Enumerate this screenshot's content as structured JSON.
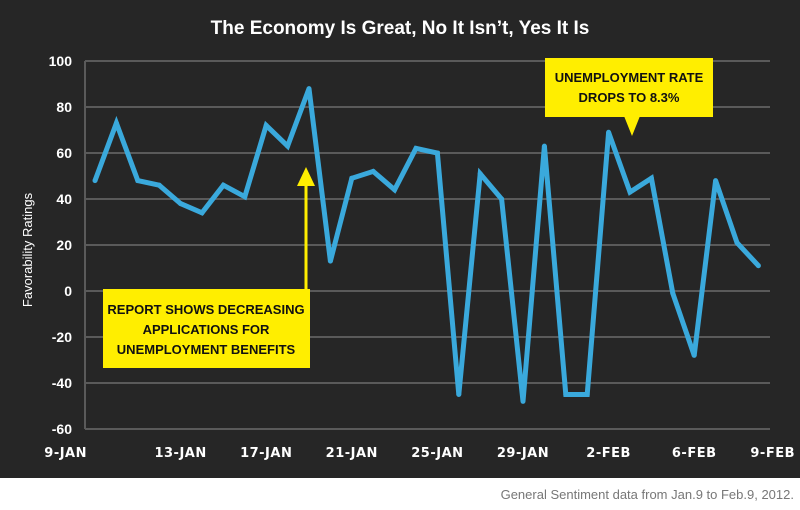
{
  "chart_data": {
    "type": "line",
    "title": "The Economy Is Great, No It Isn’t, Yes It Is",
    "ylabel": "Favorability Ratings",
    "xlabel": "",
    "ylim": [
      -60,
      100
    ],
    "yticks": [
      100,
      80,
      60,
      40,
      20,
      0,
      -20,
      -40,
      -60
    ],
    "grid": true,
    "x_tick_labels": [
      "9-JAN",
      "13-JAN",
      "17-JAN",
      "21-JAN",
      "25-JAN",
      "29-JAN",
      "2-FEB",
      "6-FEB",
      "9-FEB"
    ],
    "x_tick_days": [
      0,
      4,
      8,
      12,
      16,
      20,
      24,
      28,
      31
    ],
    "x": [
      "Jan 9",
      "Jan 10",
      "Jan 11",
      "Jan 12",
      "Jan 13",
      "Jan 14",
      "Jan 15",
      "Jan 16",
      "Jan 17",
      "Jan 18",
      "Jan 19",
      "Jan 20",
      "Jan 21",
      "Jan 22",
      "Jan 23",
      "Jan 24",
      "Jan 25",
      "Jan 26",
      "Jan 27",
      "Jan 28",
      "Jan 29",
      "Jan 30",
      "Jan 31",
      "Feb 1",
      "Feb 2",
      "Feb 3",
      "Feb 4",
      "Feb 5",
      "Feb 6",
      "Feb 7",
      "Feb 8",
      "Feb 9"
    ],
    "values": [
      48,
      73,
      48,
      46,
      38,
      34,
      46,
      41,
      72,
      63,
      88,
      13,
      49,
      52,
      44,
      62,
      60,
      -45,
      51,
      40,
      -48,
      63,
      -45,
      -45,
      69,
      43,
      49,
      -1,
      -28,
      48,
      21,
      11
    ],
    "annotations": [
      {
        "lines": [
          "REPORT SHOWS DECREASING",
          "APPLICATIONS FOR",
          "UNEMPLOYMENT BENEFITS"
        ],
        "points_to": "Jan 19"
      },
      {
        "lines": [
          "UNEMPLOYMENT RATE",
          "DROPS TO 8.3%"
        ],
        "points_to": "Feb 3"
      }
    ],
    "colors": {
      "background": "#262626",
      "line": "#3aa9dc",
      "grid": "#5a5a5a",
      "annotation": "#ffee00"
    }
  },
  "footer": "General Sentiment data from Jan.9 to Feb.9, 2012."
}
